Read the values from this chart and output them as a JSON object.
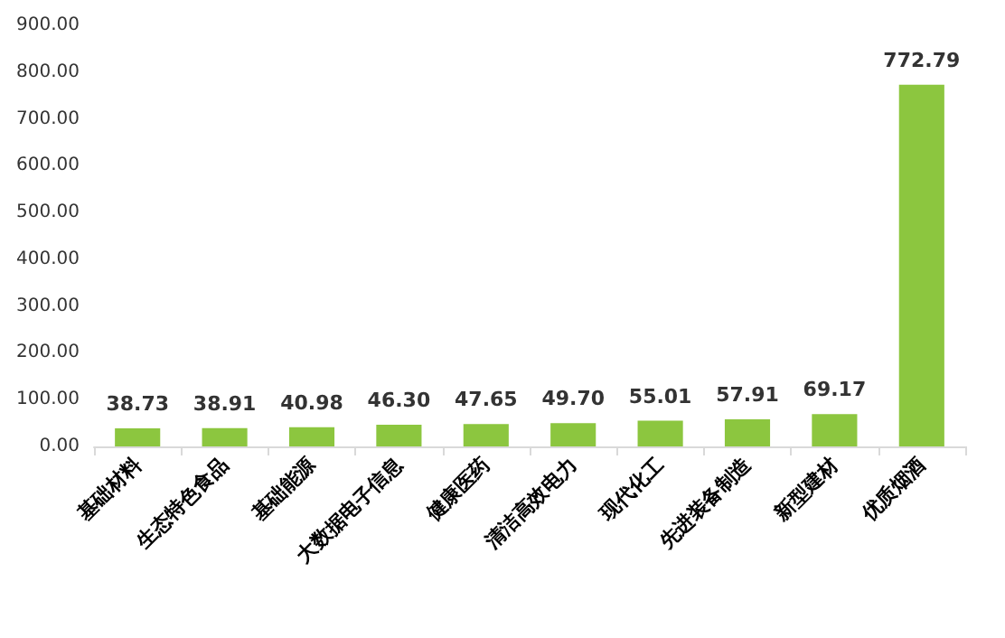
{
  "chart_data": {
    "type": "bar",
    "categories": [
      "基础材料",
      "生态特色食品",
      "基础能源",
      "大数据电子信息",
      "健康医药",
      "清洁高效电力",
      "现代化工",
      "先进装备制造",
      "新型建材",
      "优质烟酒"
    ],
    "values": [
      38.73,
      38.91,
      40.98,
      46.3,
      47.65,
      49.7,
      55.01,
      57.91,
      69.17,
      772.79
    ],
    "value_labels": [
      "38.73",
      "38.91",
      "40.98",
      "46.30",
      "47.65",
      "49.70",
      "55.01",
      "57.91",
      "69.17",
      "772.79"
    ],
    "color": "#8cc63f",
    "ylim": [
      0,
      900
    ],
    "yticks": [
      {
        "value": 0,
        "label": "0.00"
      },
      {
        "value": 100,
        "label": "100.00"
      },
      {
        "value": 200,
        "label": "200.00"
      },
      {
        "value": 300,
        "label": "300.00"
      },
      {
        "value": 400,
        "label": "400.00"
      },
      {
        "value": 500,
        "label": "500.00"
      },
      {
        "value": 600,
        "label": "600.00"
      },
      {
        "value": 700,
        "label": "700.00"
      },
      {
        "value": 800,
        "label": "800.00"
      },
      {
        "value": 900,
        "label": "900.00"
      }
    ],
    "grid": false
  }
}
